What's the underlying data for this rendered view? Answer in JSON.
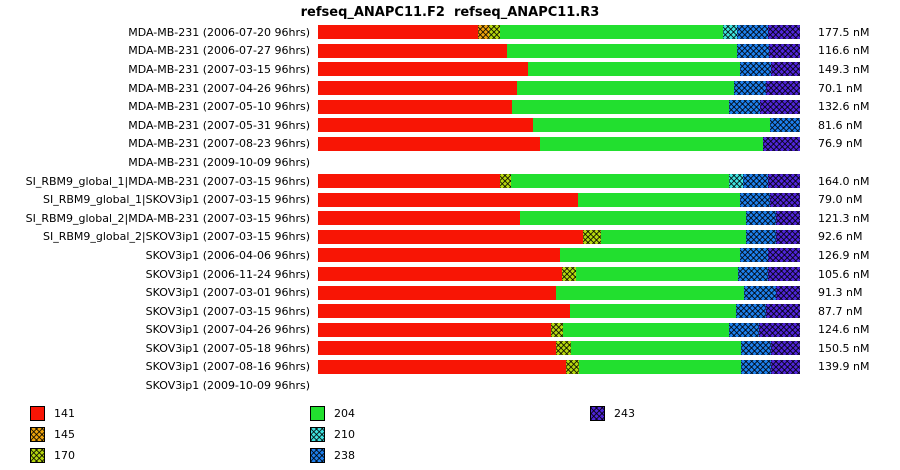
{
  "chart_data": {
    "type": "bar",
    "orientation": "horizontal",
    "stacked": true,
    "title": "refseq_ANAPC11.F2  refseq_ANAPC11.R3",
    "xlabel": "",
    "ylabel": "",
    "xlim_percent": [
      0,
      100
    ],
    "grid": false,
    "legend_position": "bottom",
    "legend": [
      {
        "key": "141",
        "label": "141",
        "color": "#f81505",
        "hatched": false
      },
      {
        "key": "145",
        "label": "145",
        "color": "#eea30c",
        "hatched": true
      },
      {
        "key": "170",
        "label": "170",
        "color": "#b6d70e",
        "hatched": true
      },
      {
        "key": "204",
        "label": "204",
        "color": "#22df2f",
        "hatched": false
      },
      {
        "key": "210",
        "label": "210",
        "color": "#3fe3e0",
        "hatched": true
      },
      {
        "key": "238",
        "label": "238",
        "color": "#1d80ee",
        "hatched": true
      },
      {
        "key": "243",
        "label": "243",
        "color": "#4f25d8",
        "hatched": true
      }
    ],
    "legend_columns": [
      [
        "141",
        "145",
        "170"
      ],
      [
        "204",
        "210",
        "238"
      ],
      [
        "243"
      ]
    ],
    "rows": [
      {
        "label": "MDA-MB-231 (2006-07-20 96hrs)",
        "value": "177.5 nM",
        "segments": [
          {
            "key": "141",
            "pct": 33.2
          },
          {
            "key": "145",
            "pct": 2.3
          },
          {
            "key": "170",
            "pct": 2.3
          },
          {
            "key": "204",
            "pct": 46.3
          },
          {
            "key": "210",
            "pct": 2.9
          },
          {
            "key": "238",
            "pct": 6.4
          },
          {
            "key": "243",
            "pct": 6.6
          }
        ]
      },
      {
        "label": "MDA-MB-231 (2006-07-27 96hrs)",
        "value": "116.6 nM",
        "segments": [
          {
            "key": "141",
            "pct": 39.2
          },
          {
            "key": "204",
            "pct": 47.7
          },
          {
            "key": "238",
            "pct": 6.6
          },
          {
            "key": "243",
            "pct": 6.5
          }
        ]
      },
      {
        "label": "MDA-MB-231 (2007-03-15 96hrs)",
        "value": "149.3 nM",
        "segments": [
          {
            "key": "141",
            "pct": 43.6
          },
          {
            "key": "204",
            "pct": 44.0
          },
          {
            "key": "238",
            "pct": 6.4
          },
          {
            "key": "243",
            "pct": 6.0
          }
        ]
      },
      {
        "label": "MDA-MB-231 (2007-04-26 96hrs)",
        "value": "70.1 nM",
        "segments": [
          {
            "key": "141",
            "pct": 41.3
          },
          {
            "key": "204",
            "pct": 45.0
          },
          {
            "key": "238",
            "pct": 6.6
          },
          {
            "key": "243",
            "pct": 7.1
          }
        ]
      },
      {
        "label": "MDA-MB-231 (2007-05-10 96hrs)",
        "value": "132.6 nM",
        "segments": [
          {
            "key": "141",
            "pct": 40.2
          },
          {
            "key": "204",
            "pct": 45.0
          },
          {
            "key": "238",
            "pct": 6.6
          },
          {
            "key": "243",
            "pct": 8.2
          }
        ]
      },
      {
        "label": "MDA-MB-231 (2007-05-31 96hrs)",
        "value": "81.6 nM",
        "segments": [
          {
            "key": "141",
            "pct": 44.6
          },
          {
            "key": "204",
            "pct": 49.2
          },
          {
            "key": "238",
            "pct": 6.2
          }
        ]
      },
      {
        "label": "MDA-MB-231 (2007-08-23 96hrs)",
        "value": "76.9 nM",
        "segments": [
          {
            "key": "141",
            "pct": 46.1
          },
          {
            "key": "204",
            "pct": 46.2
          },
          {
            "key": "243",
            "pct": 7.7
          }
        ]
      },
      {
        "label": "MDA-MB-231 (2009-10-09 96hrs)",
        "value": "",
        "segments": []
      },
      {
        "label": "SI_RBM9_global_1|MDA-MB-231 (2007-03-15 96hrs)",
        "value": "164.0 nM",
        "segments": [
          {
            "key": "141",
            "pct": 37.8
          },
          {
            "key": "170",
            "pct": 2.3
          },
          {
            "key": "204",
            "pct": 45.2
          },
          {
            "key": "210",
            "pct": 2.9
          },
          {
            "key": "238",
            "pct": 5.2
          },
          {
            "key": "243",
            "pct": 6.6
          }
        ]
      },
      {
        "label": "SI_RBM9_global_1|SKOV3ip1 (2007-03-15 96hrs)",
        "value": "79.0 nM",
        "segments": [
          {
            "key": "141",
            "pct": 53.9
          },
          {
            "key": "204",
            "pct": 33.7
          },
          {
            "key": "238",
            "pct": 6.2
          },
          {
            "key": "243",
            "pct": 6.2
          }
        ]
      },
      {
        "label": "SI_RBM9_global_2|MDA-MB-231 (2007-03-15 96hrs)",
        "value": "121.3 nM",
        "segments": [
          {
            "key": "141",
            "pct": 41.9
          },
          {
            "key": "204",
            "pct": 46.9
          },
          {
            "key": "238",
            "pct": 6.2
          },
          {
            "key": "243",
            "pct": 5.0
          }
        ]
      },
      {
        "label": "SI_RBM9_global_2|SKOV3ip1 (2007-03-15 96hrs)",
        "value": "92.6 nM",
        "segments": [
          {
            "key": "141",
            "pct": 55.0
          },
          {
            "key": "170",
            "pct": 3.7
          },
          {
            "key": "204",
            "pct": 30.1
          },
          {
            "key": "238",
            "pct": 6.2
          },
          {
            "key": "243",
            "pct": 5.0
          }
        ]
      },
      {
        "label": "SKOV3ip1 (2006-04-06 96hrs)",
        "value": "126.9 nM",
        "segments": [
          {
            "key": "141",
            "pct": 50.2
          },
          {
            "key": "204",
            "pct": 37.4
          },
          {
            "key": "238",
            "pct": 5.8
          },
          {
            "key": "243",
            "pct": 6.6
          }
        ]
      },
      {
        "label": "SKOV3ip1 (2006-11-24 96hrs)",
        "value": "105.6 nM",
        "segments": [
          {
            "key": "141",
            "pct": 50.6
          },
          {
            "key": "170",
            "pct": 2.9
          },
          {
            "key": "204",
            "pct": 33.7
          },
          {
            "key": "238",
            "pct": 6.2
          },
          {
            "key": "243",
            "pct": 6.6
          }
        ]
      },
      {
        "label": "SKOV3ip1 (2007-03-01 96hrs)",
        "value": "91.3 nM",
        "segments": [
          {
            "key": "141",
            "pct": 49.4
          },
          {
            "key": "204",
            "pct": 39.0
          },
          {
            "key": "238",
            "pct": 6.6
          },
          {
            "key": "243",
            "pct": 5.0
          }
        ]
      },
      {
        "label": "SKOV3ip1 (2007-03-15 96hrs)",
        "value": "87.7 nM",
        "segments": [
          {
            "key": "141",
            "pct": 52.3
          },
          {
            "key": "204",
            "pct": 34.4
          },
          {
            "key": "238",
            "pct": 6.2
          },
          {
            "key": "243",
            "pct": 7.1
          }
        ]
      },
      {
        "label": "SKOV3ip1 (2007-04-26 96hrs)",
        "value": "124.6 nM",
        "segments": [
          {
            "key": "141",
            "pct": 48.3
          },
          {
            "key": "170",
            "pct": 2.5
          },
          {
            "key": "204",
            "pct": 34.5
          },
          {
            "key": "238",
            "pct": 6.2
          },
          {
            "key": "243",
            "pct": 8.5
          }
        ]
      },
      {
        "label": "SKOV3ip1 (2007-05-18 96hrs)",
        "value": "150.5 nM",
        "segments": [
          {
            "key": "141",
            "pct": 49.4
          },
          {
            "key": "170",
            "pct": 3.1
          },
          {
            "key": "204",
            "pct": 35.3
          },
          {
            "key": "238",
            "pct": 6.2
          },
          {
            "key": "243",
            "pct": 6.0
          }
        ]
      },
      {
        "label": "SKOV3ip1 (2007-08-16 96hrs)",
        "value": "139.9 nM",
        "segments": [
          {
            "key": "141",
            "pct": 51.5
          },
          {
            "key": "170",
            "pct": 2.7
          },
          {
            "key": "204",
            "pct": 33.6
          },
          {
            "key": "238",
            "pct": 6.2
          },
          {
            "key": "243",
            "pct": 6.0
          }
        ]
      },
      {
        "label": "SKOV3ip1 (2009-10-09 96hrs)",
        "value": "",
        "segments": []
      }
    ]
  }
}
